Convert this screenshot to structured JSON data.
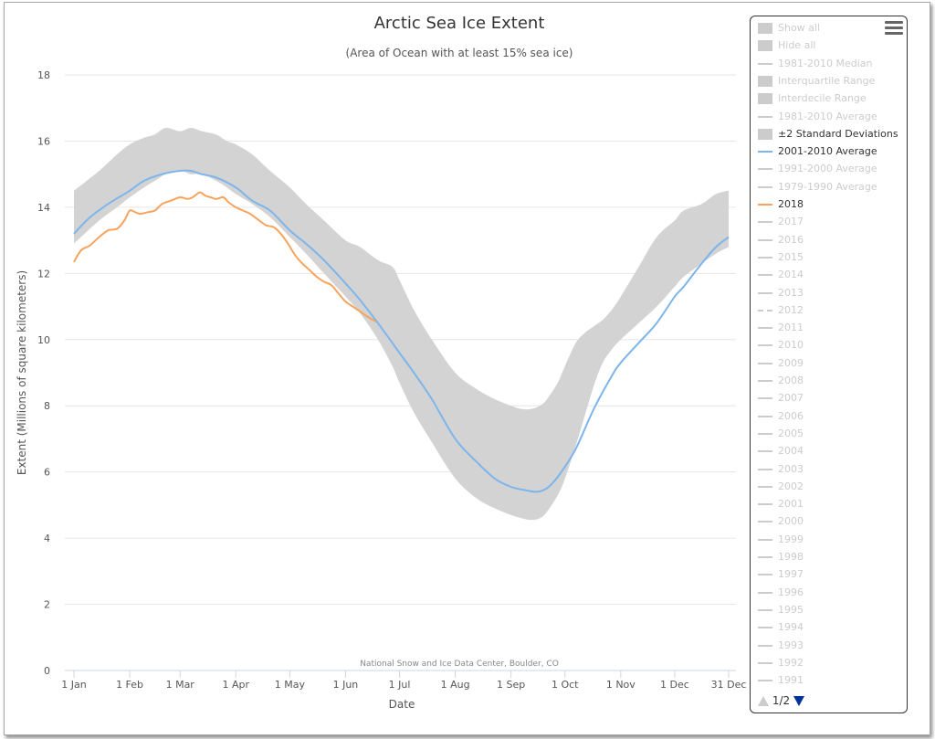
{
  "chart_data": {
    "type": "line",
    "title": "Arctic Sea Ice Extent",
    "subtitle": "(Area of Ocean with at least 15% sea ice)",
    "xlabel": "Date",
    "ylabel": "Extent (Millions of square kilometers)",
    "credit": "National Snow and Ice Data Center, Boulder, CO",
    "ylim": [
      0,
      18
    ],
    "xlim": [
      1,
      365
    ],
    "y_ticks": [
      0,
      2,
      4,
      6,
      8,
      10,
      12,
      14,
      16,
      18
    ],
    "x_ticks": [
      {
        "day": 1,
        "label": "1 Jan"
      },
      {
        "day": 32,
        "label": "1 Feb"
      },
      {
        "day": 60,
        "label": "1 Mar"
      },
      {
        "day": 91,
        "label": "1 Apr"
      },
      {
        "day": 121,
        "label": "1 May"
      },
      {
        "day": 152,
        "label": "1 Jun"
      },
      {
        "day": 182,
        "label": "1 Jul"
      },
      {
        "day": 213,
        "label": "1 Aug"
      },
      {
        "day": 244,
        "label": "1 Sep"
      },
      {
        "day": 274,
        "label": "1 Oct"
      },
      {
        "day": 305,
        "label": "1 Nov"
      },
      {
        "day": 335,
        "label": "1 Dec"
      },
      {
        "day": 365,
        "label": "31 Dec"
      }
    ],
    "grid": true,
    "legend_position": "right",
    "series": [
      {
        "name": "±2 Standard Deviations",
        "kind": "band",
        "color": "#d3d3d3",
        "x": [
          1,
          15,
          25,
          32,
          40,
          46,
          52,
          60,
          66,
          72,
          80,
          86,
          91,
          100,
          110,
          121,
          130,
          140,
          152,
          160,
          170,
          178,
          182,
          190,
          200,
          213,
          225,
          235,
          244,
          250,
          255,
          260,
          264,
          270,
          274,
          280,
          285,
          290,
          295,
          300,
          305,
          315,
          325,
          335,
          340,
          350,
          358,
          365
        ],
        "low": [
          12.9,
          13.6,
          14.0,
          14.3,
          14.6,
          14.8,
          15.0,
          15.1,
          15.0,
          15.0,
          14.8,
          14.6,
          14.4,
          14.1,
          13.7,
          13.1,
          12.6,
          12.0,
          11.3,
          10.8,
          10.0,
          9.2,
          8.7,
          7.8,
          6.9,
          5.8,
          5.2,
          4.9,
          4.7,
          4.6,
          4.55,
          4.6,
          4.8,
          5.3,
          5.8,
          6.8,
          7.7,
          8.6,
          9.3,
          9.7,
          10.0,
          10.5,
          11.0,
          11.6,
          11.9,
          12.3,
          12.6,
          12.8
        ],
        "high": [
          14.5,
          15.1,
          15.6,
          15.9,
          16.1,
          16.2,
          16.4,
          16.3,
          16.4,
          16.3,
          16.2,
          16.0,
          15.9,
          15.6,
          15.1,
          14.6,
          14.1,
          13.6,
          13.0,
          12.8,
          12.4,
          12.2,
          11.8,
          10.9,
          10.0,
          9.0,
          8.5,
          8.2,
          8.0,
          7.9,
          7.9,
          8.0,
          8.2,
          8.7,
          9.2,
          9.9,
          10.2,
          10.4,
          10.6,
          10.9,
          11.3,
          12.2,
          13.1,
          13.6,
          13.9,
          14.1,
          14.4,
          14.5
        ]
      },
      {
        "name": "2001-2010 Average",
        "kind": "line",
        "color": "#7cb5ec",
        "x": [
          1,
          10,
          20,
          32,
          40,
          50,
          60,
          66,
          72,
          80,
          91,
          100,
          110,
          121,
          130,
          140,
          152,
          160,
          170,
          182,
          190,
          200,
          213,
          225,
          235,
          244,
          252,
          258,
          262,
          266,
          272,
          280,
          290,
          300,
          305,
          315,
          325,
          335,
          340,
          350,
          358,
          365
        ],
        "y": [
          13.2,
          13.7,
          14.1,
          14.5,
          14.8,
          15.0,
          15.1,
          15.1,
          15.0,
          14.9,
          14.6,
          14.2,
          13.9,
          13.3,
          12.9,
          12.4,
          11.7,
          11.2,
          10.5,
          9.6,
          9.0,
          8.2,
          7.0,
          6.3,
          5.8,
          5.55,
          5.45,
          5.4,
          5.45,
          5.6,
          6.0,
          6.7,
          7.9,
          8.9,
          9.3,
          9.9,
          10.5,
          11.3,
          11.6,
          12.3,
          12.8,
          13.1
        ]
      },
      {
        "name": "2018",
        "kind": "line",
        "color": "#f7a35c",
        "x": [
          1,
          5,
          10,
          15,
          20,
          25,
          29,
          32,
          35,
          38,
          42,
          46,
          50,
          55,
          60,
          64,
          67,
          71,
          74,
          77,
          80,
          84,
          87,
          91,
          95,
          99,
          104,
          108,
          112,
          116,
          120,
          124,
          128,
          132,
          136,
          140,
          144,
          148,
          152,
          156,
          160,
          164,
          167,
          169
        ],
        "y": [
          12.35,
          12.7,
          12.85,
          13.1,
          13.3,
          13.35,
          13.6,
          13.9,
          13.85,
          13.8,
          13.85,
          13.9,
          14.1,
          14.2,
          14.3,
          14.25,
          14.3,
          14.45,
          14.35,
          14.3,
          14.25,
          14.3,
          14.15,
          14.0,
          13.9,
          13.8,
          13.6,
          13.45,
          13.4,
          13.2,
          12.9,
          12.55,
          12.3,
          12.1,
          11.9,
          11.75,
          11.65,
          11.4,
          11.15,
          11.0,
          10.85,
          10.7,
          10.6,
          10.55
        ]
      }
    ]
  },
  "legend": {
    "menu_icon": "hamburger-menu-icon",
    "items": [
      {
        "label": "Show all",
        "symbol": "box",
        "active": false
      },
      {
        "label": "Hide all",
        "symbol": "box",
        "active": false
      },
      {
        "label": "1981-2010 Median",
        "symbol": "line",
        "active": false
      },
      {
        "label": "Interquartile Range",
        "symbol": "box",
        "active": false
      },
      {
        "label": "Interdecile Range",
        "symbol": "box",
        "active": false
      },
      {
        "label": "1981-2010 Average",
        "symbol": "line",
        "active": false
      },
      {
        "label": "±2 Standard Deviations",
        "symbol": "box",
        "active": true,
        "color": "#cccccc"
      },
      {
        "label": "2001-2010 Average",
        "symbol": "line",
        "active": true,
        "color": "#7cb5ec"
      },
      {
        "label": "1991-2000 Average",
        "symbol": "line",
        "active": false
      },
      {
        "label": "1979-1990 Average",
        "symbol": "line",
        "active": false
      },
      {
        "label": "2018",
        "symbol": "line",
        "active": true,
        "color": "#f7a35c"
      },
      {
        "label": "2017",
        "symbol": "line",
        "active": false
      },
      {
        "label": "2016",
        "symbol": "line",
        "active": false
      },
      {
        "label": "2015",
        "symbol": "line",
        "active": false
      },
      {
        "label": "2014",
        "symbol": "line",
        "active": false
      },
      {
        "label": "2013",
        "symbol": "line",
        "active": false
      },
      {
        "label": "2012",
        "symbol": "dash",
        "active": false
      },
      {
        "label": "2011",
        "symbol": "line",
        "active": false
      },
      {
        "label": "2010",
        "symbol": "line",
        "active": false
      },
      {
        "label": "2009",
        "symbol": "line",
        "active": false
      },
      {
        "label": "2008",
        "symbol": "line",
        "active": false
      },
      {
        "label": "2007",
        "symbol": "line",
        "active": false
      },
      {
        "label": "2006",
        "symbol": "line",
        "active": false
      },
      {
        "label": "2005",
        "symbol": "line",
        "active": false
      },
      {
        "label": "2004",
        "symbol": "line",
        "active": false
      },
      {
        "label": "2003",
        "symbol": "line",
        "active": false
      },
      {
        "label": "2002",
        "symbol": "line",
        "active": false
      },
      {
        "label": "2001",
        "symbol": "line",
        "active": false
      },
      {
        "label": "2000",
        "symbol": "line",
        "active": false
      },
      {
        "label": "1999",
        "symbol": "line",
        "active": false
      },
      {
        "label": "1998",
        "symbol": "line",
        "active": false
      },
      {
        "label": "1997",
        "symbol": "line",
        "active": false
      },
      {
        "label": "1996",
        "symbol": "line",
        "active": false
      },
      {
        "label": "1995",
        "symbol": "line",
        "active": false
      },
      {
        "label": "1994",
        "symbol": "line",
        "active": false
      },
      {
        "label": "1993",
        "symbol": "line",
        "active": false
      },
      {
        "label": "1992",
        "symbol": "line",
        "active": false
      },
      {
        "label": "1991",
        "symbol": "line",
        "active": false
      }
    ],
    "pager": "1/2",
    "inactive_color": "#cccccc",
    "active_text_color": "#333333"
  }
}
